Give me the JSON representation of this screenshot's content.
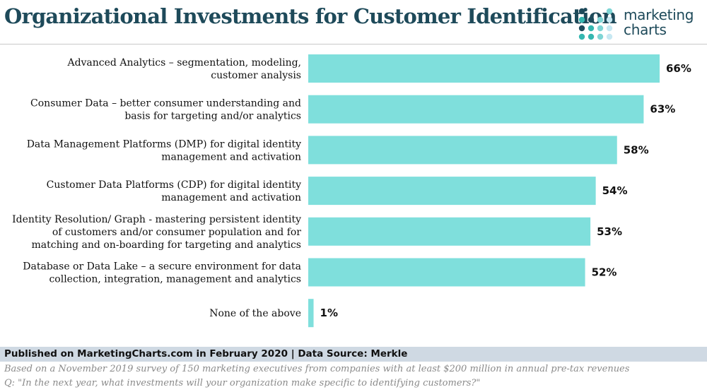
{
  "title": "Organizational Investments for Customer Identification",
  "brand": {
    "line1": "marketing",
    "line2": "charts",
    "dot_colors": [
      "#1e4a5a",
      "#35b7b0",
      "#7fd5d5",
      "#c7e8f2"
    ]
  },
  "chart_data": {
    "type": "bar",
    "orientation": "horizontal",
    "title": "Organizational Investments for Customer Identification",
    "categories": [
      [
        "Advanced Analytics – segmentation, modeling,",
        "customer analysis"
      ],
      [
        "Consumer Data – better consumer understanding and",
        "basis for targeting and/or analytics"
      ],
      [
        "Data Management Platforms (DMP) for digital identity",
        "management and activation"
      ],
      [
        "Customer Data Platforms (CDP) for digital identity",
        "management and activation"
      ],
      [
        "Identity Resolution/ Graph - mastering persistent identity",
        "of customers and/or consumer population and for",
        "matching and on-boarding for targeting and analytics"
      ],
      [
        "Database or Data Lake – a secure environment for data",
        "collection, integration, management and analytics"
      ],
      [
        "None of the above"
      ]
    ],
    "values": [
      66,
      63,
      58,
      54,
      53,
      52,
      1
    ],
    "value_labels": [
      "66%",
      "63%",
      "58%",
      "54%",
      "53%",
      "52%",
      "1%"
    ],
    "xlim": [
      0,
      66
    ],
    "grid": false,
    "bar_color": "#7fdfdc",
    "xlabel": "",
    "ylabel": ""
  },
  "footer": {
    "published": "Published on MarketingCharts.com in February 2020 | Data Source: Merkle",
    "note": "Based on a November 2019 survey of 150 marketing executives from companies with at least $200 million in annual pre-tax revenues",
    "question": "Q: \"In the next year, what investments will your organization make specific to identifying customers?\""
  }
}
